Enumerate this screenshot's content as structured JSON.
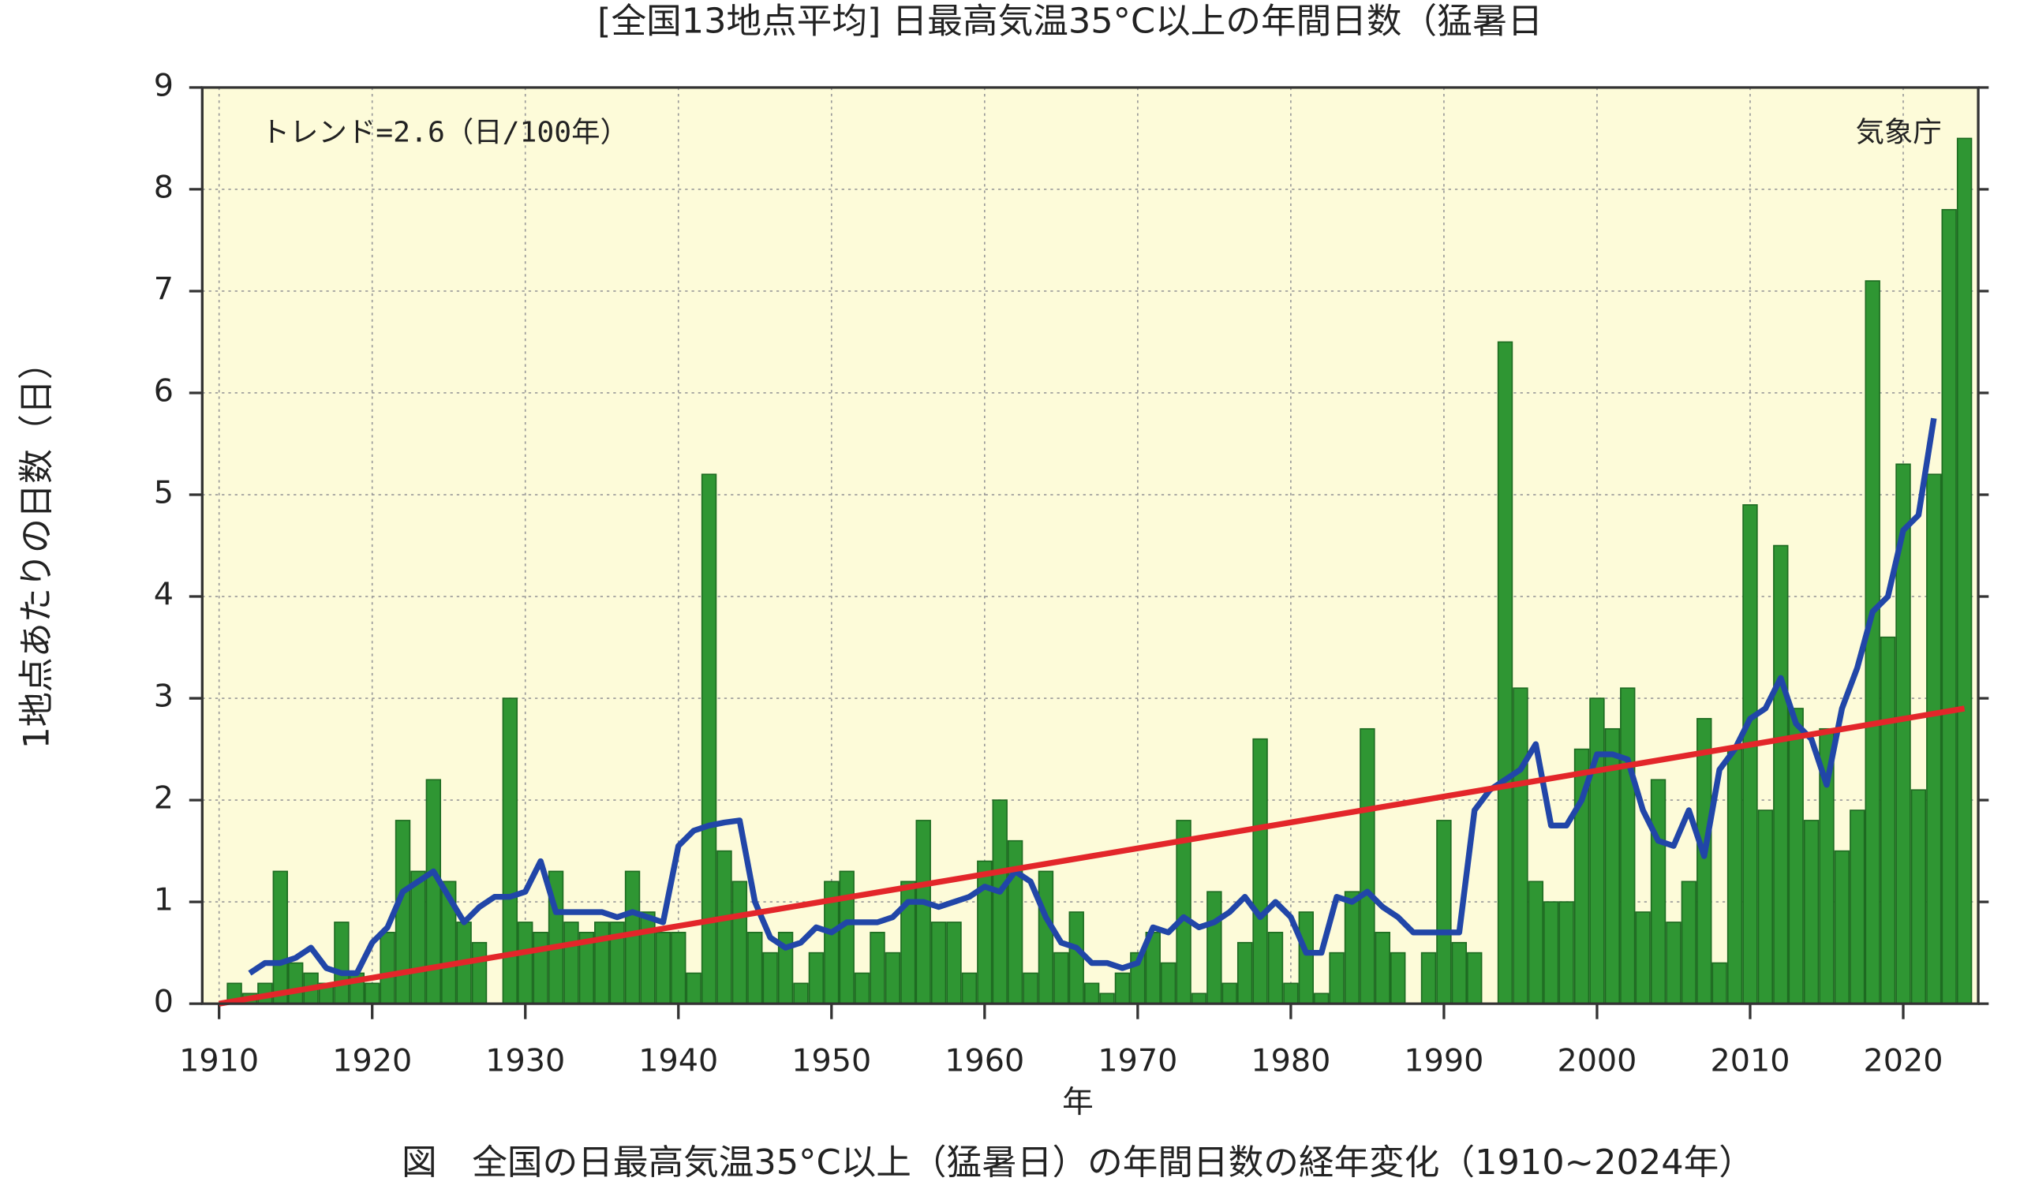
{
  "chart_data": {
    "type": "bar",
    "title": "[全国13地点平均] 日最高気温35°C以上の年間日数（猛暑日",
    "ylabel": "1地点あたりの日数（日）",
    "xlabel": "年",
    "caption": "図　全国の日最高気温35°C以上（猛暑日）の年間日数の経年変化（1910~2024年）",
    "annotations": [
      "トレンド=2.6（日/100年）",
      "気象庁"
    ],
    "background": "#fdfbd9",
    "grid": true,
    "x": [
      1910,
      1911,
      1912,
      1913,
      1914,
      1915,
      1916,
      1917,
      1918,
      1919,
      1920,
      1921,
      1922,
      1923,
      1924,
      1925,
      1926,
      1927,
      1928,
      1929,
      1930,
      1931,
      1932,
      1933,
      1934,
      1935,
      1936,
      1937,
      1938,
      1939,
      1940,
      1941,
      1942,
      1943,
      1944,
      1945,
      1946,
      1947,
      1948,
      1949,
      1950,
      1951,
      1952,
      1953,
      1954,
      1955,
      1956,
      1957,
      1958,
      1959,
      1960,
      1961,
      1962,
      1963,
      1964,
      1965,
      1966,
      1967,
      1968,
      1969,
      1970,
      1971,
      1972,
      1973,
      1974,
      1975,
      1976,
      1977,
      1978,
      1979,
      1980,
      1981,
      1982,
      1983,
      1984,
      1985,
      1986,
      1987,
      1988,
      1989,
      1990,
      1991,
      1992,
      1993,
      1994,
      1995,
      1996,
      1997,
      1998,
      1999,
      2000,
      2001,
      2002,
      2003,
      2004,
      2005,
      2006,
      2007,
      2008,
      2009,
      2010,
      2011,
      2012,
      2013,
      2014,
      2015,
      2016,
      2017,
      2018,
      2019,
      2020,
      2021,
      2022,
      2023,
      2024
    ],
    "xlim": [
      1908.9,
      2024.9
    ],
    "xticks": [
      1910,
      1920,
      1930,
      1940,
      1950,
      1960,
      1970,
      1980,
      1990,
      2000,
      2010,
      2020
    ],
    "ylim": [
      0,
      9
    ],
    "yticks": [
      0,
      1,
      2,
      3,
      4,
      5,
      6,
      7,
      8,
      9
    ],
    "series": [
      {
        "type": "bar",
        "color": "#2f9633",
        "values": [
          0,
          0.2,
          0.1,
          0.2,
          1.3,
          0.4,
          0.3,
          0.2,
          0.8,
          0.3,
          0.2,
          0.7,
          1.8,
          1.3,
          2.2,
          1.2,
          0.8,
          0.6,
          0,
          3.0,
          0.8,
          0.7,
          1.3,
          0.8,
          0.7,
          0.8,
          0.8,
          1.3,
          0.9,
          0.7,
          0.7,
          0.3,
          5.2,
          1.5,
          1.2,
          0.7,
          0.5,
          0.7,
          0.2,
          0.5,
          1.2,
          1.3,
          0.3,
          0.7,
          0.5,
          1.2,
          1.8,
          0.8,
          0.8,
          0.3,
          1.4,
          2.0,
          1.6,
          0.3,
          1.3,
          0.5,
          0.9,
          0.2,
          0.1,
          0.3,
          0.5,
          0.7,
          0.4,
          1.8,
          0.1,
          1.1,
          0.2,
          0.6,
          2.6,
          0.7,
          0.2,
          0.9,
          0.1,
          0.5,
          1.1,
          2.7,
          0.7,
          0.5,
          0,
          0.5,
          1.8,
          0.6,
          0.5,
          0,
          6.5,
          3.1,
          1.2,
          1.0,
          1.0,
          2.5,
          3.0,
          2.7,
          3.1,
          0.9,
          2.2,
          0.8,
          1.2,
          2.8,
          0.4,
          2.5,
          4.9,
          1.9,
          4.5,
          2.9,
          1.8,
          2.7,
          1.5,
          1.9,
          7.1,
          3.6,
          5.3,
          2.1,
          5.2,
          7.8,
          8.5
        ]
      },
      {
        "type": "line",
        "color": "#2146a8",
        "values": [
          null,
          null,
          0.3,
          0.4,
          0.4,
          0.45,
          0.55,
          0.35,
          0.3,
          0.3,
          0.6,
          0.75,
          1.1,
          1.2,
          1.3,
          1.05,
          0.8,
          0.95,
          1.05,
          1.05,
          1.1,
          1.4,
          0.9,
          0.9,
          0.9,
          0.9,
          0.85,
          0.9,
          0.85,
          0.8,
          1.55,
          1.7,
          1.75,
          1.78,
          1.8,
          1.0,
          0.65,
          0.55,
          0.6,
          0.75,
          0.7,
          0.8,
          0.8,
          0.8,
          0.85,
          1.0,
          1.0,
          0.95,
          1.0,
          1.05,
          1.15,
          1.1,
          1.3,
          1.2,
          0.85,
          0.6,
          0.55,
          0.4,
          0.4,
          0.35,
          0.4,
          0.75,
          0.7,
          0.85,
          0.75,
          0.8,
          0.9,
          1.05,
          0.85,
          1.0,
          0.85,
          0.5,
          0.5,
          1.05,
          1.0,
          1.1,
          0.95,
          0.85,
          0.7,
          0.7,
          0.7,
          0.7,
          1.9,
          2.1,
          2.2,
          2.3,
          2.55,
          1.75,
          1.75,
          2.0,
          2.45,
          2.45,
          2.4,
          1.9,
          1.6,
          1.55,
          1.9,
          1.45,
          2.3,
          2.5,
          2.8,
          2.9,
          3.2,
          2.75,
          2.6,
          2.15,
          2.9,
          3.3,
          3.85,
          4.0,
          4.65,
          4.8,
          5.75,
          null,
          null
        ]
      },
      {
        "type": "line",
        "color": "#e3262a",
        "x": [
          1910,
          2024
        ],
        "values": [
          0,
          2.9
        ]
      }
    ]
  }
}
